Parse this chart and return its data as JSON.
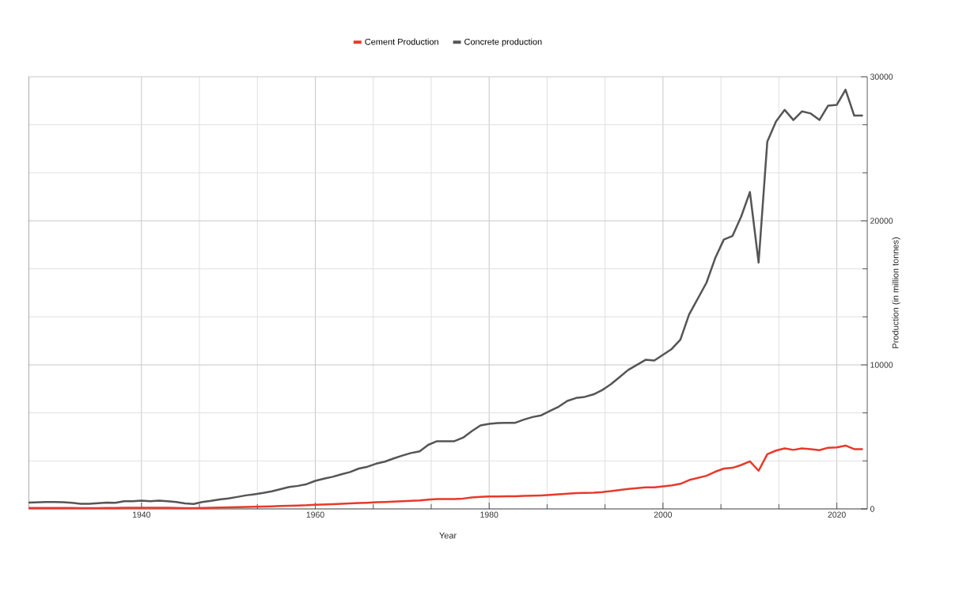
{
  "chart_data": {
    "type": "line",
    "xlabel": "Year",
    "ylabel": "Production (in million tonnes)",
    "x": [
      1927,
      1928,
      1929,
      1930,
      1931,
      1932,
      1933,
      1934,
      1935,
      1936,
      1937,
      1938,
      1939,
      1940,
      1941,
      1942,
      1943,
      1944,
      1945,
      1946,
      1947,
      1948,
      1949,
      1950,
      1951,
      1952,
      1953,
      1954,
      1955,
      1956,
      1957,
      1958,
      1959,
      1960,
      1961,
      1962,
      1963,
      1964,
      1965,
      1966,
      1967,
      1968,
      1969,
      1970,
      1971,
      1972,
      1973,
      1974,
      1975,
      1976,
      1977,
      1978,
      1979,
      1980,
      1981,
      1982,
      1983,
      1984,
      1985,
      1986,
      1987,
      1988,
      1989,
      1990,
      1991,
      1992,
      1993,
      1994,
      1995,
      1996,
      1997,
      1998,
      1999,
      2000,
      2001,
      2002,
      2003,
      2004,
      2005,
      2006,
      2007,
      2008,
      2009,
      2010,
      2011,
      2012,
      2013,
      2014,
      2015,
      2016,
      2017,
      2018,
      2019,
      2020,
      2021,
      2022,
      2023
    ],
    "series": [
      {
        "name": "Cement Production",
        "color": "#e8392b",
        "values": [
          65,
          68,
          70,
          70,
          68,
          62,
          55,
          54,
          60,
          64,
          64,
          75,
          78,
          82,
          78,
          82,
          78,
          70,
          58,
          55,
          70,
          82,
          98,
          110,
          125,
          140,
          152,
          165,
          180,
          200,
          220,
          235,
          255,
          290,
          310,
          330,
          355,
          380,
          410,
          430,
          460,
          480,
          510,
          540,
          565,
          590,
          650,
          690,
          690,
          690,
          720,
          790,
          840,
          860,
          870,
          875,
          880,
          900,
          920,
          940,
          970,
          1010,
          1060,
          1100,
          1110,
          1130,
          1170,
          1230,
          1310,
          1390,
          1440,
          1500,
          1500,
          1560,
          1630,
          1740,
          2000,
          2150,
          2300,
          2580,
          2800,
          2850,
          3050,
          3300,
          2650,
          3800,
          4050,
          4200,
          4100,
          4200,
          4150,
          4080,
          4250,
          4270,
          4400,
          4150,
          4150
        ]
      },
      {
        "name": "Concrete production",
        "color": "#555555",
        "values": [
          440,
          460,
          480,
          480,
          470,
          420,
          360,
          350,
          400,
          440,
          430,
          530,
          540,
          580,
          530,
          570,
          540,
          480,
          380,
          340,
          480,
          560,
          660,
          730,
          830,
          940,
          1020,
          1110,
          1220,
          1370,
          1520,
          1600,
          1720,
          1950,
          2100,
          2230,
          2400,
          2560,
          2800,
          2930,
          3140,
          3280,
          3500,
          3700,
          3880,
          4000,
          4450,
          4700,
          4700,
          4700,
          4950,
          5400,
          5800,
          5900,
          5960,
          5980,
          5980,
          6200,
          6380,
          6500,
          6800,
          7100,
          7500,
          7700,
          7780,
          7950,
          8250,
          8650,
          9150,
          9650,
          10000,
          10350,
          10300,
          10700,
          11100,
          11750,
          13500,
          14600,
          15700,
          17400,
          18700,
          18950,
          20300,
          22000,
          17100,
          25500,
          26900,
          27700,
          27000,
          27600,
          27450,
          27000,
          28000,
          28050,
          29100,
          27300,
          27300
        ]
      }
    ],
    "xlim": [
      1927,
      2023.5
    ],
    "xticks": [
      1940,
      1960,
      1980,
      2000,
      2020
    ],
    "ylim": [
      0,
      30000
    ],
    "yticks": [
      0,
      10000,
      20000,
      30000
    ],
    "grid": true,
    "legend": "top",
    "marker": "none",
    "line_style": "solid"
  }
}
